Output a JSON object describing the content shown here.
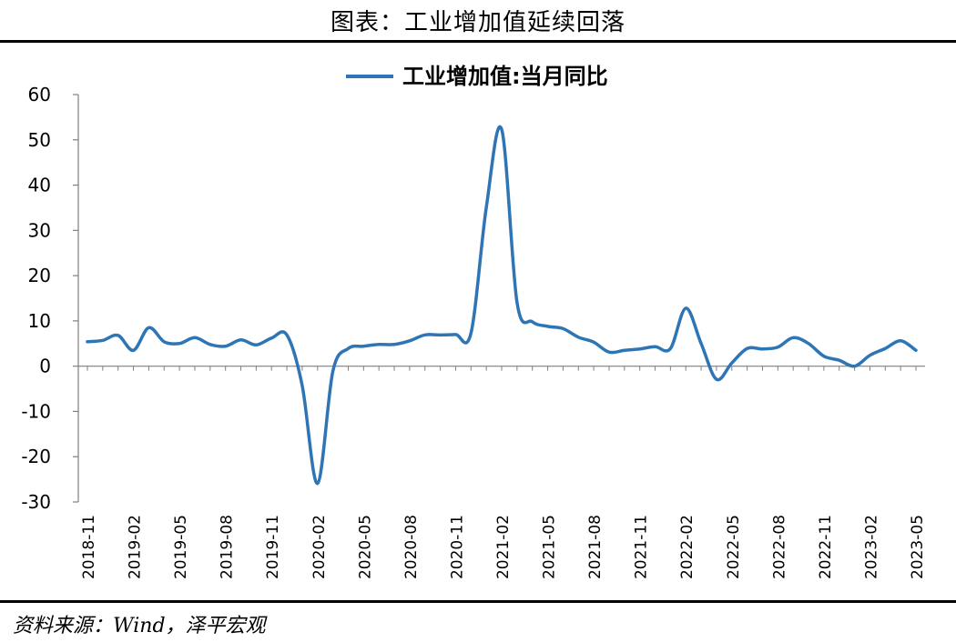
{
  "title": "图表：工业增加值延续回落",
  "source": {
    "label": "资料来源：",
    "value": "Wind，泽平宏观"
  },
  "chart_data": {
    "type": "line",
    "legend": "工业增加值:当月同比",
    "legend_position": "top-center",
    "line_color": "#2E75B6",
    "ylim": [
      -30,
      60
    ],
    "yticks": [
      -30,
      -20,
      -10,
      0,
      10,
      20,
      30,
      40,
      50,
      60
    ],
    "xticks": [
      "2018-11",
      "2019-02",
      "2019-05",
      "2019-08",
      "2019-11",
      "2020-02",
      "2020-05",
      "2020-08",
      "2020-11",
      "2021-02",
      "2021-05",
      "2021-08",
      "2021-11",
      "2022-02",
      "2022-05",
      "2022-08",
      "2022-11",
      "2023-02",
      "2023-05"
    ],
    "x": [
      "2018-11",
      "2018-12",
      "2019-01",
      "2019-02",
      "2019-03",
      "2019-04",
      "2019-05",
      "2019-06",
      "2019-07",
      "2019-08",
      "2019-09",
      "2019-10",
      "2019-11",
      "2019-12",
      "2020-01",
      "2020-02",
      "2020-03",
      "2020-04",
      "2020-05",
      "2020-06",
      "2020-07",
      "2020-08",
      "2020-09",
      "2020-10",
      "2020-11",
      "2020-12",
      "2021-01",
      "2021-02",
      "2021-03",
      "2021-04",
      "2021-05",
      "2021-06",
      "2021-07",
      "2021-08",
      "2021-09",
      "2021-10",
      "2021-11",
      "2021-12",
      "2022-01",
      "2022-02",
      "2022-03",
      "2022-04",
      "2022-05",
      "2022-06",
      "2022-07",
      "2022-08",
      "2022-09",
      "2022-10",
      "2022-11",
      "2022-12",
      "2023-01",
      "2023-02",
      "2023-03",
      "2023-04",
      "2023-05"
    ],
    "values": [
      5.4,
      5.7,
      6.8,
      3.5,
      8.5,
      5.4,
      5.0,
      6.3,
      4.8,
      4.4,
      5.8,
      4.7,
      6.2,
      6.9,
      -4.3,
      -25.9,
      -1.1,
      3.9,
      4.4,
      4.8,
      4.8,
      5.6,
      6.9,
      6.9,
      7.0,
      7.3,
      35.1,
      52.3,
      14.1,
      9.8,
      8.8,
      8.3,
      6.4,
      5.3,
      3.1,
      3.5,
      3.8,
      4.3,
      3.9,
      12.8,
      5.0,
      -2.9,
      0.7,
      3.9,
      3.8,
      4.2,
      6.3,
      5.0,
      2.2,
      1.3,
      0.0,
      2.4,
      3.9,
      5.6,
      3.5
    ]
  }
}
